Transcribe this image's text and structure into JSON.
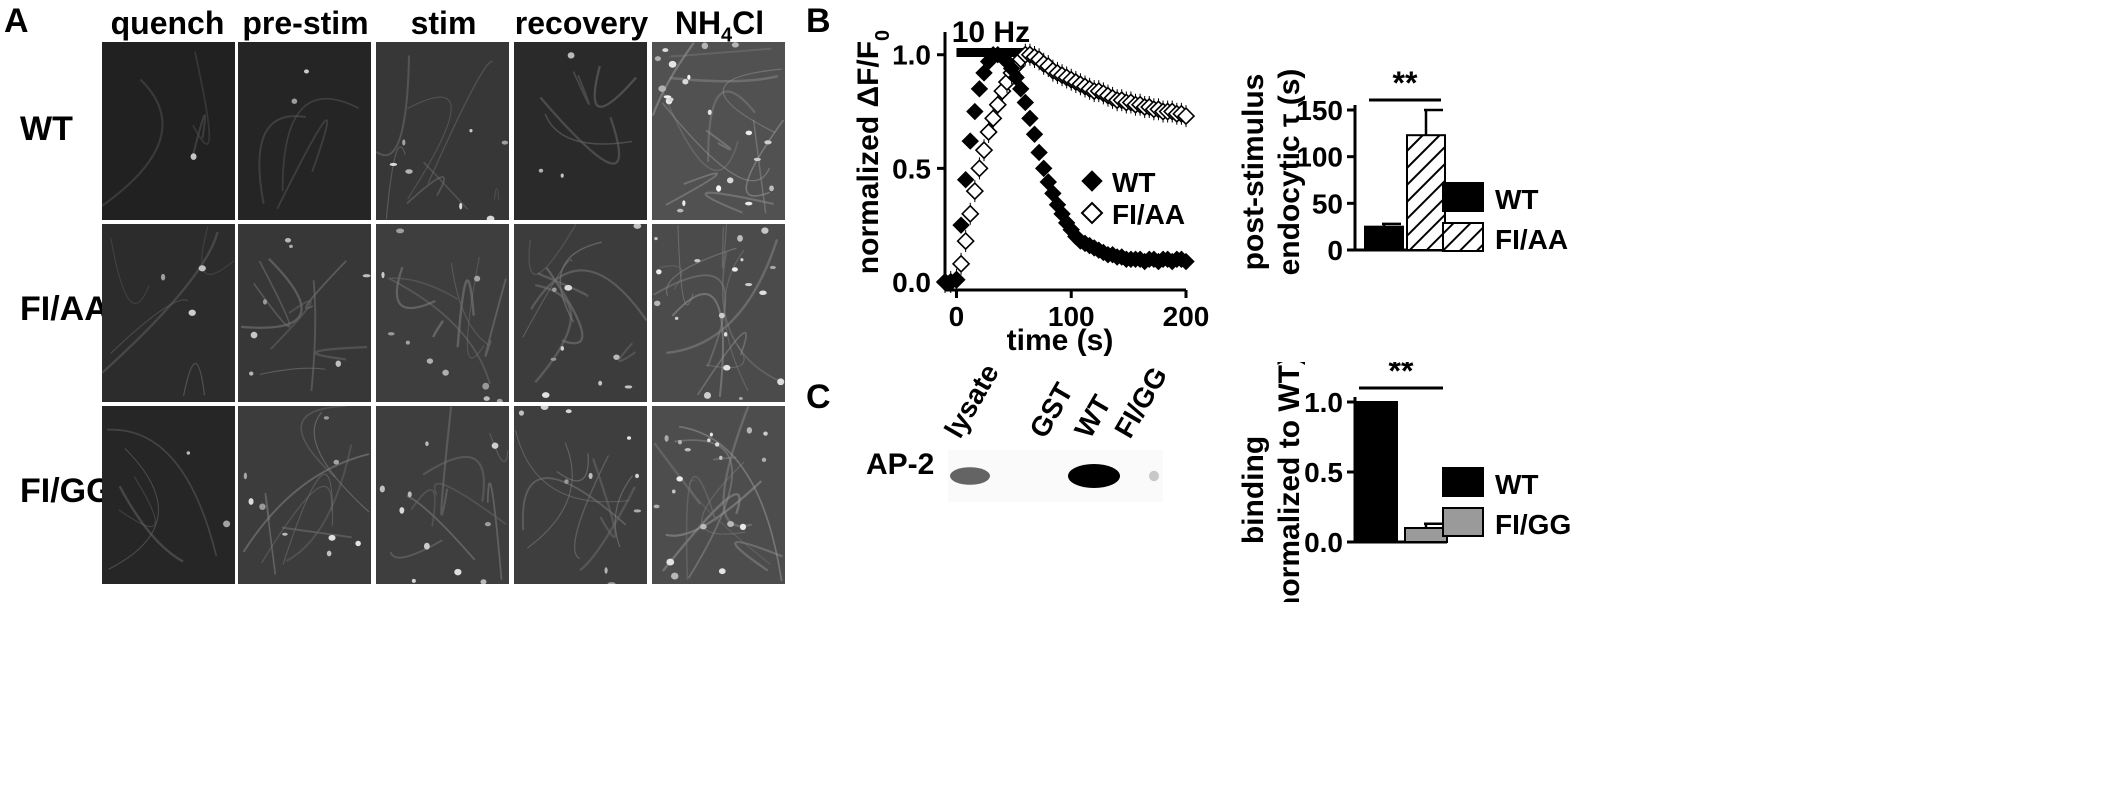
{
  "panels": {
    "a": "A",
    "b": "B",
    "c": "C"
  },
  "panel_a": {
    "columns": [
      "quench",
      "pre-stim",
      "stim",
      "recovery",
      "NH4Cl"
    ],
    "nh4cl": {
      "base": "NH",
      "sub": "4",
      "rest": "Cl"
    },
    "rows": [
      {
        "label": "WT",
        "brightness": [
          0.12,
          0.15,
          0.32,
          0.2,
          0.55
        ]
      },
      {
        "label": "FI/AA",
        "brightness": [
          0.22,
          0.32,
          0.38,
          0.36,
          0.5
        ]
      },
      {
        "label": "FI/GG",
        "brightness": [
          0.16,
          0.36,
          0.38,
          0.38,
          0.52
        ]
      }
    ]
  },
  "chart_data": [
    {
      "type": "scatter",
      "xlabel": "time (s)",
      "ylabel": "normalized ΔF/F0",
      "xlim": [
        -10,
        200
      ],
      "ylim": [
        0,
        1.1
      ],
      "xticks": [
        "0",
        "100",
        "200"
      ],
      "yticks": [
        "0.0",
        "0.5",
        "1.0"
      ],
      "annotation": "10 Hz",
      "stim_interval": [
        0,
        60
      ],
      "legend": "right",
      "series": [
        {
          "name": "WT",
          "marker": "filled-diamond",
          "x": [
            -10,
            -5,
            0,
            4,
            8,
            12,
            16,
            20,
            24,
            28,
            32,
            36,
            40,
            44,
            48,
            52,
            56,
            60,
            64,
            68,
            72,
            76,
            80,
            84,
            88,
            92,
            96,
            100,
            104,
            108,
            112,
            116,
            120,
            124,
            128,
            132,
            136,
            140,
            144,
            148,
            152,
            156,
            160,
            164,
            168,
            172,
            176,
            180,
            184,
            188,
            192,
            196,
            200
          ],
          "y": [
            0,
            0,
            0.01,
            0.25,
            0.45,
            0.62,
            0.75,
            0.85,
            0.92,
            0.97,
            1.0,
            1.0,
            0.99,
            0.97,
            0.94,
            0.9,
            0.85,
            0.79,
            0.72,
            0.65,
            0.57,
            0.5,
            0.44,
            0.39,
            0.34,
            0.3,
            0.26,
            0.23,
            0.2,
            0.18,
            0.17,
            0.16,
            0.15,
            0.14,
            0.13,
            0.12,
            0.12,
            0.11,
            0.11,
            0.1,
            0.1,
            0.1,
            0.1,
            0.09,
            0.1,
            0.1,
            0.09,
            0.1,
            0.1,
            0.09,
            0.1,
            0.1,
            0.09
          ]
        },
        {
          "name": "FI/AA",
          "marker": "open-diamond",
          "x": [
            -10,
            -5,
            0,
            4,
            8,
            12,
            16,
            20,
            24,
            28,
            32,
            36,
            40,
            44,
            48,
            52,
            56,
            60,
            64,
            68,
            72,
            76,
            80,
            84,
            88,
            92,
            96,
            100,
            104,
            108,
            112,
            116,
            120,
            124,
            128,
            132,
            136,
            140,
            144,
            148,
            152,
            156,
            160,
            164,
            168,
            172,
            176,
            180,
            184,
            188,
            192,
            196,
            200
          ],
          "y": [
            0,
            0,
            0.01,
            0.08,
            0.18,
            0.3,
            0.4,
            0.5,
            0.58,
            0.66,
            0.72,
            0.78,
            0.84,
            0.88,
            0.92,
            0.95,
            0.98,
            1.0,
            1.0,
            0.99,
            0.98,
            0.96,
            0.95,
            0.93,
            0.92,
            0.91,
            0.9,
            0.89,
            0.88,
            0.87,
            0.86,
            0.85,
            0.84,
            0.84,
            0.83,
            0.82,
            0.81,
            0.8,
            0.8,
            0.79,
            0.79,
            0.78,
            0.78,
            0.77,
            0.77,
            0.76,
            0.76,
            0.75,
            0.75,
            0.75,
            0.74,
            0.74,
            0.73
          ]
        }
      ]
    },
    {
      "type": "bar",
      "ylabel": "post-stimulus endocytic τ (s)",
      "ylabel_line1": "post-stimulus",
      "ylabel_line2": "endocytic τ (s)",
      "ylim": [
        0,
        150
      ],
      "yticks": [
        "0",
        "50",
        "100",
        "150"
      ],
      "categories": [
        "WT",
        "FI/AA"
      ],
      "values": [
        25,
        123
      ],
      "errors": [
        3,
        27
      ],
      "fills": [
        "solid",
        "hatched"
      ],
      "significance": "**",
      "legend": [
        "WT",
        "FI/AA"
      ]
    },
    {
      "type": "bar",
      "ylabel": "binding (normalized to WT)",
      "ylabel_line1": "binding",
      "ylabel_line2": "(normalized to WT)",
      "ylim": [
        0,
        1.0
      ],
      "yticks": [
        "0.0",
        "0.5",
        "1.0"
      ],
      "categories": [
        "WT",
        "FI/GG"
      ],
      "values": [
        1.0,
        0.1
      ],
      "errors": [
        0,
        0.03
      ],
      "fills": [
        "#000000",
        "#9a9a9a"
      ],
      "significance": "**",
      "legend": [
        "WT",
        "FI/GG"
      ]
    }
  ],
  "blot": {
    "lanes": [
      "lysate",
      "GST",
      "WT",
      "FI/GG"
    ],
    "row_label": "AP-2",
    "band_intensity": [
      0.6,
      0.0,
      1.0,
      0.15
    ]
  },
  "colors": {
    "ink": "#000000",
    "gray_bar": "#9a9a9a"
  }
}
